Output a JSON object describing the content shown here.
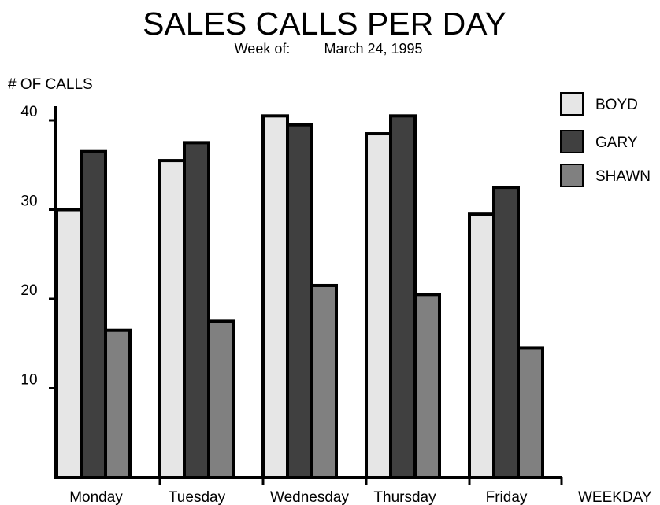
{
  "chart_data": {
    "type": "bar",
    "title": "SALES CALLS PER DAY",
    "subtitle_prefix": "Week of:",
    "subtitle_date": "March 24, 1995",
    "ylabel": "# OF CALLS",
    "xlabel": "WEEKDAY",
    "ylim": [
      0,
      40
    ],
    "yticks": [
      {
        "value": 10,
        "label": "10"
      },
      {
        "value": 20,
        "label": "20"
      },
      {
        "value": 30,
        "label": "30"
      },
      {
        "value": 40,
        "label": "40"
      }
    ],
    "categories": [
      "Monday",
      "Tuesday",
      "Wednesday",
      "Thursday",
      "Friday"
    ],
    "series": [
      {
        "name": "BOYD",
        "color": "#e6e6e6",
        "values": [
          30,
          35.5,
          40.5,
          38.5,
          29.5
        ]
      },
      {
        "name": "GARY",
        "color": "#404040",
        "values": [
          36.5,
          37.5,
          39.5,
          40.5,
          32.5
        ]
      },
      {
        "name": "SHAWN",
        "color": "#808080",
        "values": [
          16.5,
          17.5,
          21.5,
          20.5,
          14.5
        ]
      }
    ],
    "legend_position": "right",
    "grid": false
  }
}
